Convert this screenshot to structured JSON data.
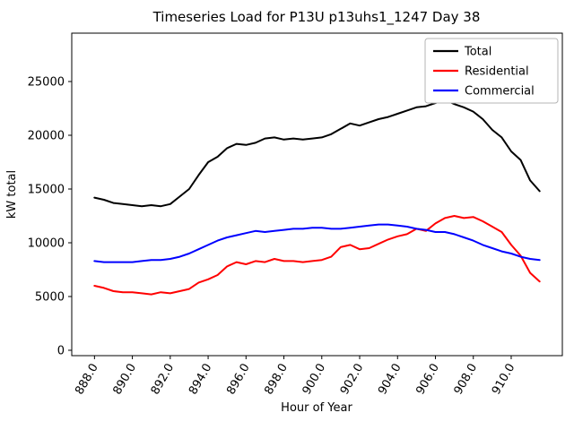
{
  "chart_data": {
    "type": "line",
    "title": "Timeseries Load for P13U p13uhs1_1247  Day 38",
    "xlabel": "Hour of Year",
    "ylabel": "kW total",
    "xlim": [
      886.8,
      912.7
    ],
    "ylim": [
      -500,
      29500
    ],
    "grid": false,
    "legend_position": "upper right",
    "xticks": [
      888.0,
      890.0,
      892.0,
      894.0,
      896.0,
      898.0,
      900.0,
      902.0,
      904.0,
      906.0,
      908.0,
      910.0
    ],
    "xtick_labels": [
      "888.0",
      "890.0",
      "892.0",
      "894.0",
      "896.0",
      "898.0",
      "900.0",
      "902.0",
      "904.0",
      "906.0",
      "908.0",
      "910.0"
    ],
    "yticks": [
      0,
      5000,
      10000,
      15000,
      20000,
      25000
    ],
    "ytick_labels": [
      "0",
      "5000",
      "10000",
      "15000",
      "20000",
      "25000"
    ],
    "x": [
      888.0,
      888.5,
      889.0,
      889.5,
      890.0,
      890.5,
      891.0,
      891.5,
      892.0,
      892.5,
      893.0,
      893.5,
      894.0,
      894.5,
      895.0,
      895.5,
      896.0,
      896.5,
      897.0,
      897.5,
      898.0,
      898.5,
      899.0,
      899.5,
      900.0,
      900.5,
      901.0,
      901.5,
      902.0,
      902.5,
      903.0,
      903.5,
      904.0,
      904.5,
      905.0,
      905.5,
      906.0,
      906.5,
      907.0,
      907.5,
      908.0,
      908.5,
      909.0,
      909.5,
      910.0,
      910.5,
      911.0,
      911.5
    ],
    "series": [
      {
        "name": "Total",
        "color": "#000000",
        "values": [
          14200,
          14000,
          13700,
          13600,
          13500,
          13400,
          13500,
          13400,
          13600,
          14300,
          15000,
          16300,
          17500,
          18000,
          18800,
          19200,
          19100,
          19300,
          19700,
          19800,
          19600,
          19700,
          19600,
          19700,
          19800,
          20100,
          20600,
          21100,
          20900,
          21200,
          21500,
          21700,
          22000,
          22300,
          22600,
          22700,
          23000,
          23300,
          22900,
          22600,
          22200,
          21500,
          20500,
          19800,
          18500,
          17700,
          15800,
          14800
        ]
      },
      {
        "name": "Residential",
        "color": "#ff0000",
        "values": [
          6000,
          5800,
          5500,
          5400,
          5400,
          5300,
          5200,
          5400,
          5300,
          5500,
          5700,
          6300,
          6600,
          7000,
          7800,
          8200,
          8000,
          8300,
          8200,
          8500,
          8300,
          8300,
          8200,
          8300,
          8400,
          8700,
          9600,
          9800,
          9400,
          9500,
          9900,
          10300,
          10600,
          10800,
          11300,
          11100,
          11800,
          12300,
          12500,
          12300,
          12400,
          12000,
          11500,
          11000,
          9800,
          8800,
          7200,
          6400
        ]
      },
      {
        "name": "Commercial",
        "color": "#0000ff",
        "values": [
          8300,
          8200,
          8200,
          8200,
          8200,
          8300,
          8400,
          8400,
          8500,
          8700,
          9000,
          9400,
          9800,
          10200,
          10500,
          10700,
          10900,
          11100,
          11000,
          11100,
          11200,
          11300,
          11300,
          11400,
          11400,
          11300,
          11300,
          11400,
          11500,
          11600,
          11700,
          11700,
          11600,
          11500,
          11300,
          11200,
          11000,
          11000,
          10800,
          10500,
          10200,
          9800,
          9500,
          9200,
          9000,
          8700,
          8500,
          8400
        ]
      }
    ]
  }
}
